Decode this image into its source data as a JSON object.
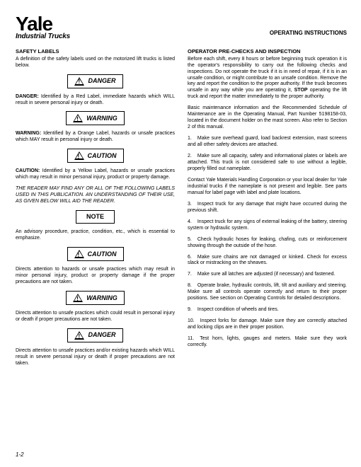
{
  "logo": {
    "brand": "Yale",
    "subline": "Industrial Trucks"
  },
  "header_right": "OPERATING INSTRUCTIONS",
  "left": {
    "heading": "SAFETY LABELS",
    "intro": "A definition of the safety labels used on the motorized lift trucks is listed below.",
    "items": [
      {
        "label": "DANGER",
        "icon": true,
        "def_lead": "DANGER:",
        "def": "Identified by a Red Label, immediate hazards which WILL result in severe personal injury or death."
      },
      {
        "label": "WARNING",
        "icon": true,
        "def_lead": "WARNING:",
        "def": "Identified by a Orange Label, hazards or unsafe practices which MAY result in personal injury or death."
      },
      {
        "label": "CAUTION",
        "icon": true,
        "def_lead": "CAUTION:",
        "def": "Identified by a Yellow Label, hazards or unsafe practices which may result in minor personal injury, product or property damage."
      }
    ],
    "reader_note": "THE READER MAY FIND ANY OR ALL OF THE FOLLOWING LABELS USED IN THIS PUBLICATION. AN UNDERSTANDING OF THEIR USE, AS GIVEN BELOW WILL AID THE READER.",
    "secondary": [
      {
        "label": "NOTE",
        "icon": false,
        "def": "An advisory procedure, practice, condition, etc., which is essential to emphasize."
      },
      {
        "label": "CAUTION",
        "icon": true,
        "def": "Directs attention to hazards or unsafe practices which may result in minor personal injury, product or property damage if the proper precautions are not taken."
      },
      {
        "label": "WARNING",
        "icon": true,
        "def": "Directs attention to unsafe practices which could result in personal injury or death if proper precautions are not taken."
      },
      {
        "label": "DANGER",
        "icon": true,
        "def": "Directs attention to unsafe practices and/or existing hazards which WILL result in severe personal injury or death if proper precautions are not taken."
      }
    ]
  },
  "right": {
    "heading": "OPERATOR PRE-CHECKS AND INSPECTION",
    "para1_a": "Before each shift, every 8 hours or before beginning truck operation it is the operator's responsibility to carry out the following checks and inspections. Do not operate the truck if it is in need of repair, if it is in an unsafe condition, or might contribute to an unsafe condition. Remove the key and report the condition to the proper authority. If the truck becomes unsafe in any way while you are operating it, ",
    "para1_stop": "STOP",
    "para1_b": " operating the lift truck and report the matter immediately to the proper authority.",
    "para2": "Basic maintenance information and the Recommended Schedule of Maintenance are in the Operating Manual, Part Number 5198158-03, located in the document holder on the mast screen. Also refer to Section 2 of this manual.",
    "checks": [
      "Make sure overhead guard, load backrest extension, mast screens and all other safety devices are attached.",
      "Make sure all capacity, safety and informational plates or labels are attached. This truck is not considered safe to use without a legible, properly filled out nameplate.",
      "Inspect truck for any damage that might have occurred during the previous shift.",
      "Inspect truck for any signs of external leaking of the battery, steering system or hydraulic system.",
      "Check hydraulic hoses for leaking, chafing, cuts or reinforcement showing through the outside of the hose.",
      "Make sure chains are not damaged or kinked. Check for excess slack or mistracking on the sheaves.",
      "Make sure all latches are adjusted (if necessary) and fastened.",
      "Operate brake, hydraulic controls, lift, tilt and auxiliary and steering. Make sure all controls operate correctly and return to their proper positions. See section on Operating Controls for detailed descriptions.",
      "Inspect condition of wheels and tires.",
      "Inspect forks for damage. Make sure they are correctly attached and locking clips are in their proper position.",
      "Test horn, lights, gauges and meters. Make sure they work correctly."
    ],
    "contact": "Contact Yale Materials Handling Corporation or your local dealer for Yale industrial trucks if the nameplate is not present and legible. See parts manual for label page with label and plate locations."
  },
  "page_number": "1-2"
}
